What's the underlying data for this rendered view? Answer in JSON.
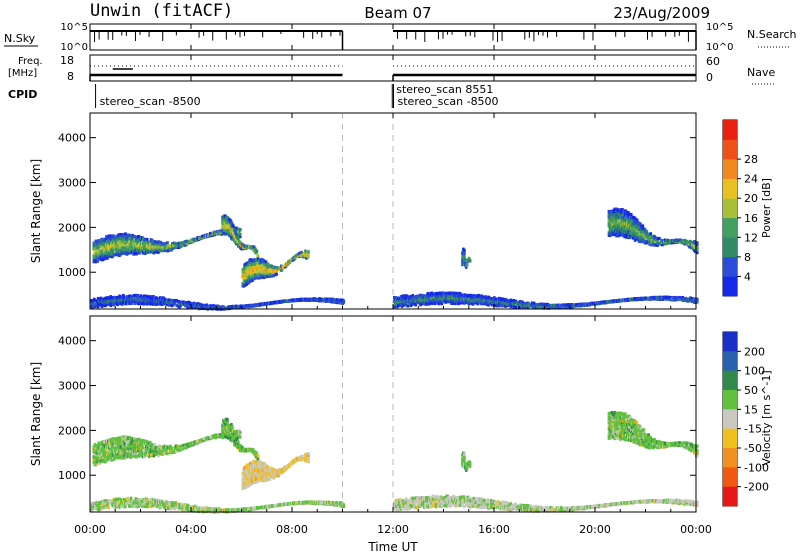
{
  "header": {
    "station": "Unwin (fitACF)",
    "beam": "Beam 07",
    "date": "23/Aug/2009"
  },
  "noise_panel": {
    "left_label": "N.Sky",
    "right_label": "N.Search",
    "left_ticks": [
      "10^5",
      "10^0"
    ],
    "right_ticks": [
      "10^5",
      "10^0"
    ]
  },
  "freq_panel": {
    "left_label_line1": "Freq.",
    "left_label_line2": "[MHz]",
    "left_ticks": [
      "18",
      "8"
    ],
    "right_label": "Nave",
    "right_ticks": [
      "60",
      "0"
    ]
  },
  "cpid_panel": {
    "label": "CPID",
    "entries": [
      {
        "text": "stereo_scan -8500",
        "start_hour": 0.3,
        "row": 1
      },
      {
        "text": "stereo_scan 8551",
        "start_hour": 12.05,
        "row": 0
      },
      {
        "text": "stereo_scan -8500",
        "start_hour": 12.1,
        "row": 1
      }
    ]
  },
  "x_axis": {
    "label": "Time UT",
    "ticks": [
      "00:00",
      "04:00",
      "08:00",
      "12:00",
      "16:00",
      "20:00",
      "00:00"
    ],
    "tick_hours": [
      0,
      4,
      8,
      12,
      16,
      20,
      24
    ]
  },
  "power_panel": {
    "ylabel": "Slant Range [km]",
    "yticks": [
      "1000",
      "2000",
      "3000",
      "4000"
    ],
    "colorbar_label": "Power [dB]",
    "colorbar_ticks": [
      "4",
      "8",
      "12",
      "16",
      "20",
      "24",
      "28"
    ]
  },
  "velocity_panel": {
    "ylabel": "Slant Range [km]",
    "yticks": [
      "1000",
      "2000",
      "3000",
      "4000"
    ],
    "colorbar_label": "Velocity [m s^-1]",
    "colorbar_ticks": [
      "200",
      "100",
      "50",
      "15",
      "-15",
      "-50",
      "-100",
      "-200"
    ]
  },
  "chart_data": {
    "type": "heatmap",
    "x_range_hours": [
      0,
      24
    ],
    "y_range_km": [
      180,
      4550
    ],
    "data_gap_hours": [
      10.0,
      12.0
    ],
    "power_scale_db": [
      0,
      30
    ],
    "power_colors": [
      "#1428e8",
      "#2a4cd8",
      "#2f8a66",
      "#44a060",
      "#a8c038",
      "#e8c020",
      "#f08820",
      "#f05018",
      "#e82010"
    ],
    "velocity_colors": [
      "#1830c8",
      "#2a60b0",
      "#2f8a4a",
      "#60c040",
      "#c8c8c0",
      "#f0c020",
      "#f09020",
      "#f05a10",
      "#e81818"
    ],
    "echo_regions": [
      {
        "name": "evening-band",
        "t_start": 0.1,
        "t_end": 5.9,
        "r_start": 1450,
        "r_end": 1850,
        "thickness_km": 450,
        "power_db": 14,
        "velocity": 0
      },
      {
        "name": "onset-patch",
        "t_start": 5.2,
        "t_end": 6.6,
        "r_start": 2050,
        "r_end": 1350,
        "thickness_km": 380,
        "power_db": 16,
        "velocity": 5
      },
      {
        "name": "post-midnight-arc",
        "t_start": 6.0,
        "t_end": 8.6,
        "r_start": 900,
        "r_end": 1350,
        "thickness_km": 450,
        "power_db": 18,
        "velocity": -45
      },
      {
        "name": "morning-arc",
        "t_start": 20.5,
        "t_end": 24.0,
        "r_start": 2100,
        "r_end": 1500,
        "thickness_km": 550,
        "power_db": 12,
        "velocity": 0
      },
      {
        "name": "morning-spot",
        "t_start": 14.7,
        "t_end": 15.0,
        "r_start": 1300,
        "r_end": 1200,
        "thickness_km": 300,
        "power_db": 10,
        "velocity": 0
      },
      {
        "name": "ground-scatter-1",
        "t_start": 0.0,
        "t_end": 10.0,
        "r_start": 300,
        "r_end": 300,
        "thickness_km": 180,
        "power_db": 6,
        "velocity": -10
      },
      {
        "name": "ground-scatter-2",
        "t_start": 12.0,
        "t_end": 24.0,
        "r_start": 330,
        "r_end": 330,
        "thickness_km": 220,
        "power_db": 8,
        "velocity": -20
      }
    ]
  }
}
